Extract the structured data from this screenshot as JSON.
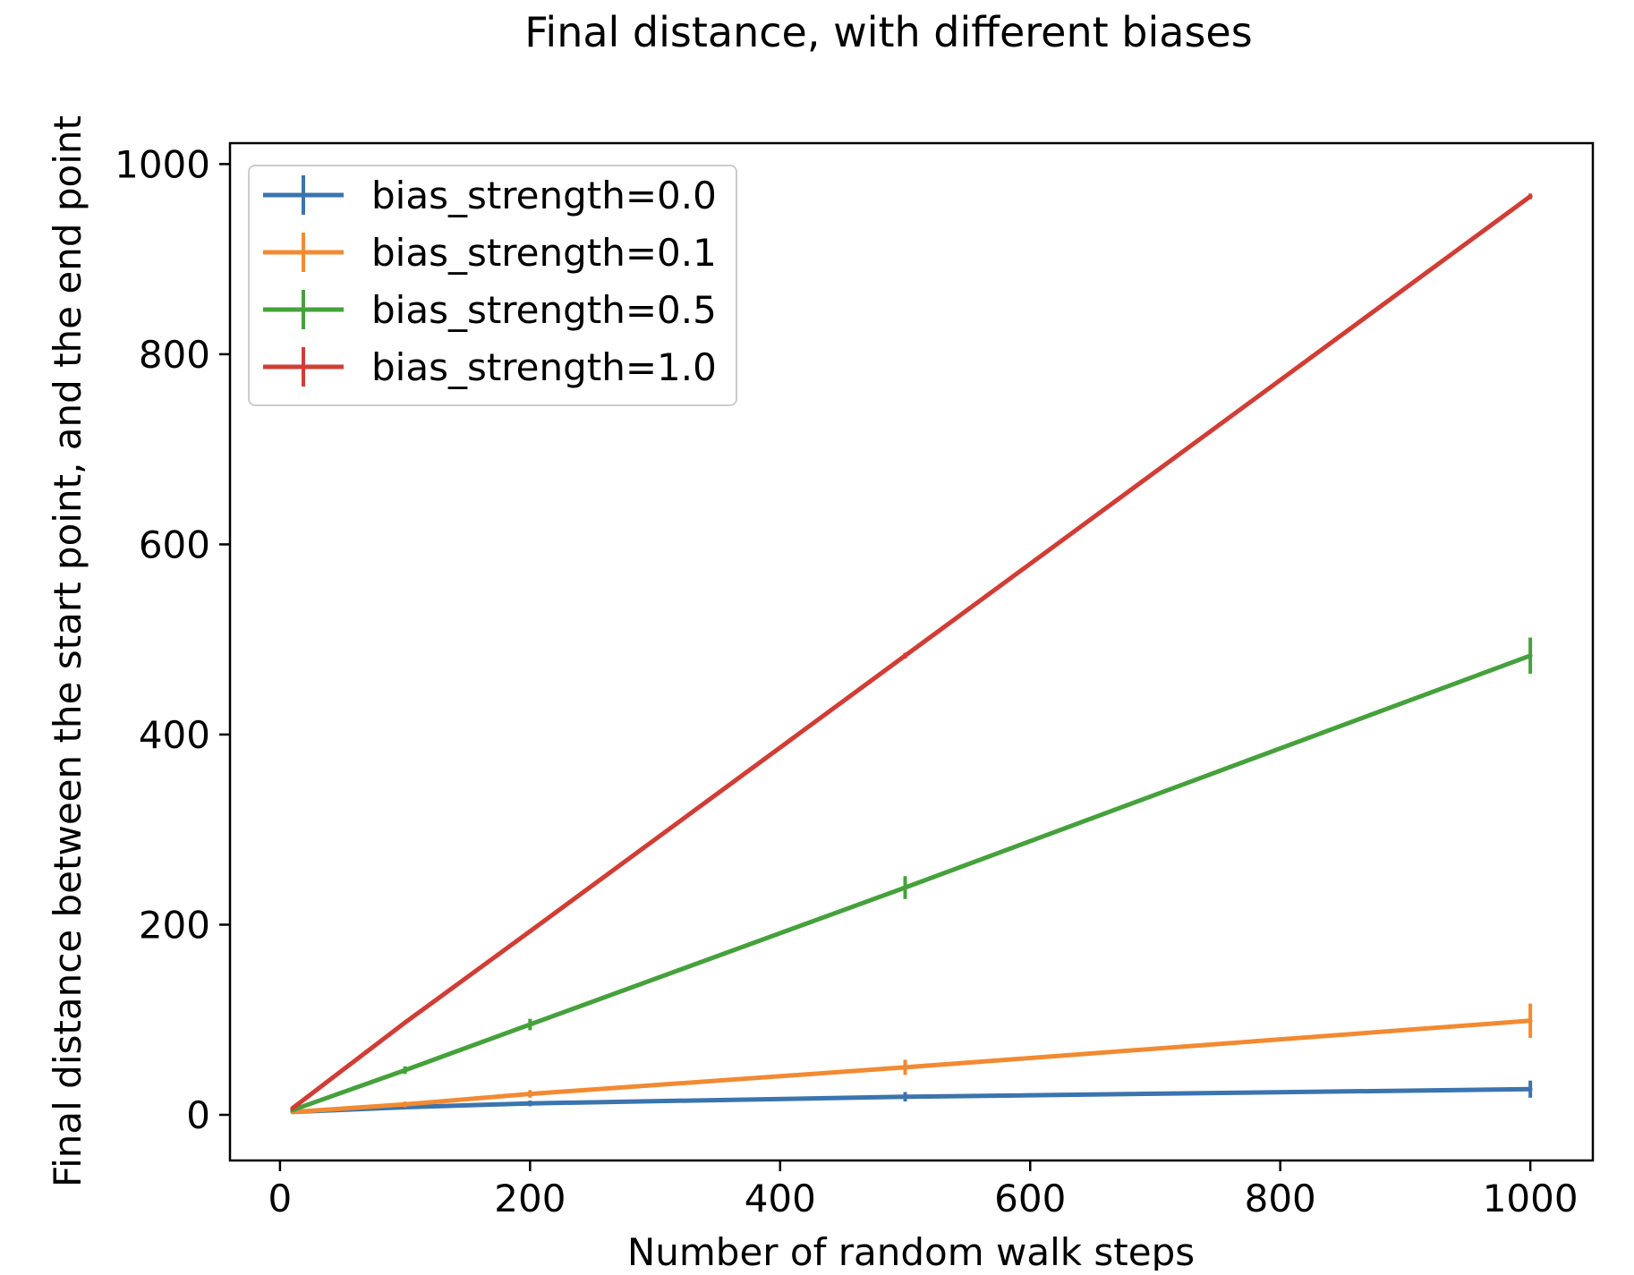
{
  "chart_data": {
    "type": "line",
    "title": "Final distance, with different biases",
    "xlabel": "Number of random walk steps",
    "ylabel": "Final distance between the start point, and the end point",
    "xlim": [
      -40,
      1050
    ],
    "ylim": [
      -48,
      1022
    ],
    "xticks": [
      0,
      200,
      400,
      600,
      800,
      1000
    ],
    "yticks": [
      0,
      200,
      400,
      600,
      800,
      1000
    ],
    "grid": false,
    "legend_position": "top-left",
    "x": [
      10,
      100,
      200,
      500,
      1000
    ],
    "series": [
      {
        "name": "bias_strength=0.0",
        "color": "#3b74ae",
        "values": [
          3,
          8,
          12,
          19,
          27
        ],
        "errors": [
          1,
          2,
          3,
          5,
          9
        ]
      },
      {
        "name": "bias_strength=0.1",
        "color": "#f28a32",
        "values": [
          3,
          11,
          22,
          50,
          99
        ],
        "errors": [
          1,
          3,
          4,
          8,
          18
        ]
      },
      {
        "name": "bias_strength=0.5",
        "color": "#45a13b",
        "values": [
          5,
          47,
          95,
          239,
          483
        ],
        "errors": [
          2,
          4,
          6,
          12,
          19
        ]
      },
      {
        "name": "bias_strength=1.0",
        "color": "#d13d34",
        "values": [
          7,
          97,
          193,
          483,
          966
        ],
        "errors": [
          1,
          1,
          2,
          3,
          3
        ]
      }
    ]
  }
}
